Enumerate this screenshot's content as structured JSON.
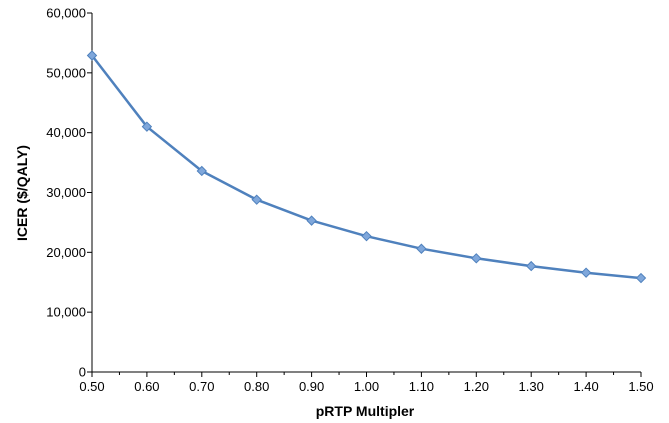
{
  "chart_data": {
    "type": "line",
    "title": "",
    "xlabel": "pRTP Multipler",
    "ylabel": "ICER ($/QALY)",
    "xlim": [
      0.5,
      1.5
    ],
    "ylim": [
      0,
      60000
    ],
    "x_ticks": [
      "0.50",
      "0.60",
      "0.70",
      "0.80",
      "0.90",
      "1.00",
      "1.10",
      "1.20",
      "1.30",
      "1.40",
      "1.50"
    ],
    "y_ticks": [
      "0",
      "10,000",
      "20,000",
      "30,000",
      "40,000",
      "50,000",
      "60,000"
    ],
    "grid": false,
    "legend": "none",
    "series": [
      {
        "color": "#4F81BD",
        "marker": "diamond",
        "x": [
          0.5,
          0.6,
          0.7,
          0.8,
          0.9,
          1.0,
          1.1,
          1.2,
          1.3,
          1.4,
          1.5
        ],
        "y": [
          52900,
          41000,
          33600,
          28800,
          25300,
          22700,
          20600,
          19000,
          17700,
          16600,
          15700
        ]
      }
    ]
  }
}
